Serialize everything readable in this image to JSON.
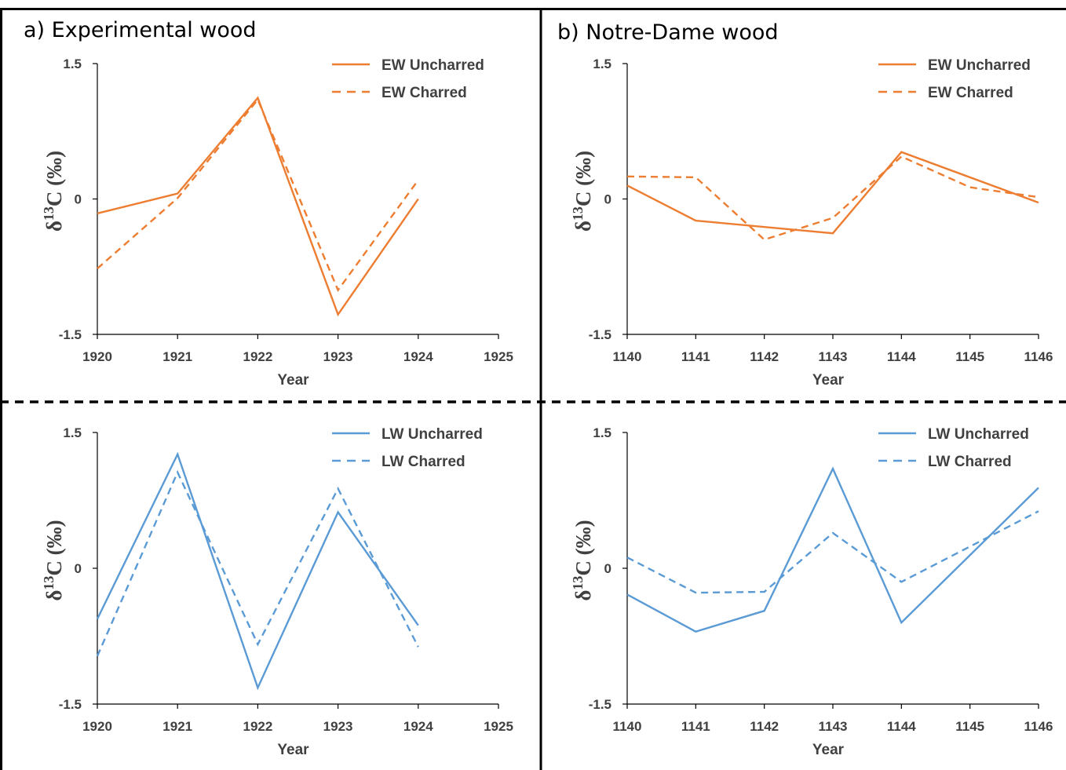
{
  "figure": {
    "colors": {
      "earlywood": "#ed7d31",
      "latewood": "#5b9bd5",
      "text": "#404040",
      "axis": "#000000"
    }
  },
  "chart_data": [
    {
      "id": "a-ew",
      "type": "line",
      "panel_title": "a) Experimental wood",
      "xlabel": "Year",
      "ylabel": "δ13C (‰)",
      "x": [
        1920,
        1921,
        1922,
        1923,
        1924
      ],
      "xlim": [
        1920,
        1925
      ],
      "xticks": [
        1920,
        1921,
        1922,
        1923,
        1924,
        1925
      ],
      "ylim": [
        -1.5,
        1.5
      ],
      "yticks": [
        -1.5,
        0,
        1.5
      ],
      "ytick_labels": [
        "-1.5",
        "0",
        "1.5"
      ],
      "legend_position": "top-right",
      "series": [
        {
          "name": "EW Uncharred",
          "style": "solid",
          "color": "#ed7d31",
          "values": [
            -0.16,
            0.06,
            1.12,
            -1.28,
            0.0
          ]
        },
        {
          "name": "EW Charred",
          "style": "dashed",
          "color": "#ed7d31",
          "values": [
            -0.77,
            0.01,
            1.1,
            -1.01,
            0.21
          ]
        }
      ]
    },
    {
      "id": "b-ew",
      "type": "line",
      "panel_title": "b) Notre-Dame wood",
      "xlabel": "Year",
      "ylabel": "δ13C (‰)",
      "x": [
        1140,
        1141,
        1142,
        1143,
        1144,
        1145,
        1146
      ],
      "xlim": [
        1140,
        1146
      ],
      "xticks": [
        1140,
        1141,
        1142,
        1143,
        1144,
        1145,
        1146
      ],
      "ylim": [
        -1.5,
        1.5
      ],
      "yticks": [
        -1.5,
        0,
        1.5
      ],
      "ytick_labels": [
        "-1.5",
        "0",
        "1.5"
      ],
      "legend_position": "top-right",
      "series": [
        {
          "name": "EW Uncharred",
          "style": "solid",
          "color": "#ed7d31",
          "values": [
            0.15,
            -0.24,
            null,
            -0.38,
            0.52,
            null,
            -0.04
          ]
        },
        {
          "name": "EW Charred",
          "style": "dashed",
          "color": "#ed7d31",
          "values": [
            0.25,
            0.24,
            -0.45,
            -0.21,
            0.47,
            0.13,
            0.02
          ]
        }
      ]
    },
    {
      "id": "a-lw",
      "type": "line",
      "xlabel": "Year",
      "ylabel": "δ13C (‰)",
      "x": [
        1920,
        1921,
        1922,
        1923,
        1924
      ],
      "xlim": [
        1920,
        1925
      ],
      "xticks": [
        1920,
        1921,
        1922,
        1923,
        1924,
        1925
      ],
      "ylim": [
        -1.5,
        1.5
      ],
      "yticks": [
        -1.5,
        0,
        1.5
      ],
      "ytick_labels": [
        "-1.5",
        "0",
        "1.5"
      ],
      "legend_position": "top-right",
      "series": [
        {
          "name": "LW Uncharred",
          "style": "solid",
          "color": "#5b9bd5",
          "values": [
            -0.56,
            1.26,
            -1.32,
            0.62,
            -0.63
          ]
        },
        {
          "name": "LW Charred",
          "style": "dashed",
          "color": "#5b9bd5",
          "values": [
            -0.97,
            1.06,
            -0.84,
            0.88,
            -0.87
          ]
        }
      ]
    },
    {
      "id": "b-lw",
      "type": "line",
      "xlabel": "Year",
      "ylabel": "δ13C (‰)",
      "x": [
        1140,
        1141,
        1142,
        1143,
        1144,
        1145,
        1146
      ],
      "xlim": [
        1140,
        1146
      ],
      "xticks": [
        1140,
        1141,
        1142,
        1143,
        1144,
        1145,
        1146
      ],
      "ylim": [
        -1.5,
        1.5
      ],
      "yticks": [
        -1.5,
        0,
        1.5
      ],
      "ytick_labels": [
        "-1.5",
        "0",
        "1.5"
      ],
      "legend_position": "top-right",
      "series": [
        {
          "name": "LW Uncharred",
          "style": "solid",
          "color": "#5b9bd5",
          "values": [
            -0.29,
            -0.7,
            -0.47,
            1.1,
            -0.6,
            null,
            0.89
          ]
        },
        {
          "name": "LW Charred",
          "style": "dashed",
          "color": "#5b9bd5",
          "values": [
            0.12,
            -0.27,
            -0.26,
            0.39,
            -0.15,
            null,
            0.63
          ]
        }
      ]
    }
  ]
}
